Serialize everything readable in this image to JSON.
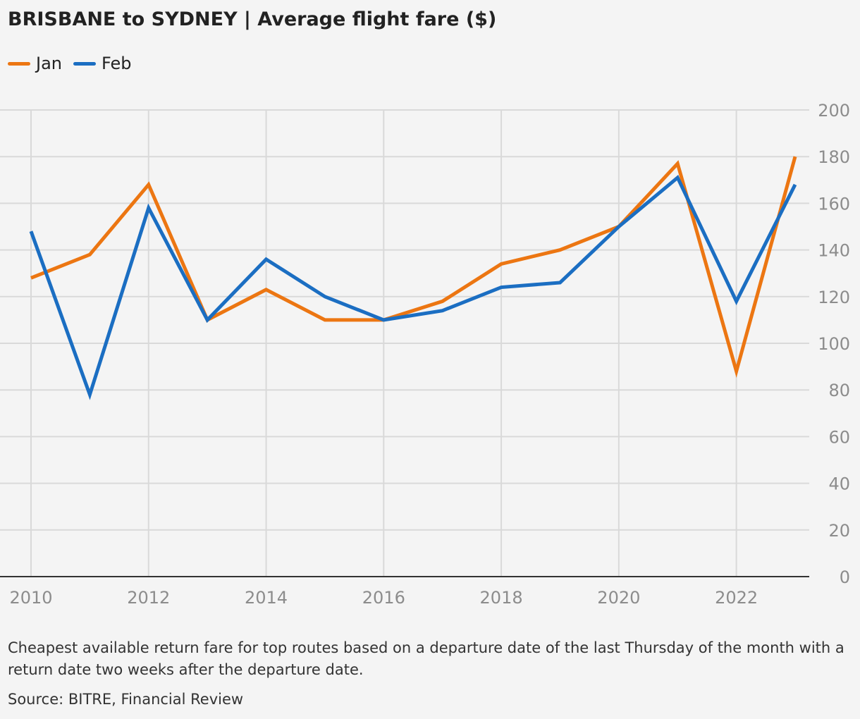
{
  "title": "BRISBANE to SYDNEY | Average flight fare ($)",
  "note": "Cheapest available return fare for top routes based on a departure date of the last Thursday of the month with a return date two weeks after the departure date.",
  "source": "Source: BITRE, Financial Review",
  "colors": {
    "jan": "#ec7612",
    "feb": "#1b6ec2",
    "grid": "#d9d9d9",
    "axis": "#333333",
    "tick_text": "#8c8c8c"
  },
  "chart_data": {
    "type": "line",
    "x": [
      2010,
      2011,
      2012,
      2013,
      2014,
      2015,
      2016,
      2017,
      2018,
      2019,
      2020,
      2021,
      2022,
      2023
    ],
    "series": [
      {
        "name": "Jan",
        "color": "#ec7612",
        "values": [
          128,
          138,
          168,
          110,
          123,
          110,
          110,
          118,
          134,
          140,
          150,
          177,
          88,
          180
        ]
      },
      {
        "name": "Feb",
        "color": "#1b6ec2",
        "values": [
          148,
          78,
          158,
          110,
          136,
          120,
          110,
          114,
          124,
          126,
          150,
          171,
          118,
          168
        ]
      }
    ],
    "xticks": [
      "2010",
      "2012",
      "2014",
      "2016",
      "2018",
      "2020",
      "2022"
    ],
    "yticks": [
      "0",
      "20",
      "40",
      "60",
      "80",
      "100",
      "120",
      "140",
      "160",
      "180",
      "200"
    ],
    "ylim": [
      0,
      200
    ],
    "xlim": [
      2010,
      2023
    ],
    "grid": true,
    "yaxis_side": "right",
    "legend_position": "top-left"
  }
}
